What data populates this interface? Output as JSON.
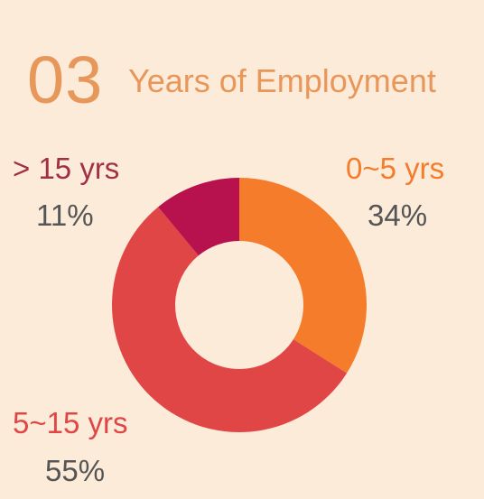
{
  "header": {
    "number": "03",
    "title": "Years of Employment"
  },
  "chart_data": {
    "type": "pie",
    "categories": [
      "0~5 yrs",
      "5~15 yrs",
      "> 15 yrs"
    ],
    "values": [
      34,
      55,
      11
    ],
    "percent_labels": [
      "34%",
      "55%",
      "11%"
    ],
    "colors": [
      "#f47c2a",
      "#e04646",
      "#b8124e"
    ],
    "label_colors": [
      "#f47c2a",
      "#e04646",
      "#a13045"
    ],
    "legend": "labels beside slices"
  }
}
